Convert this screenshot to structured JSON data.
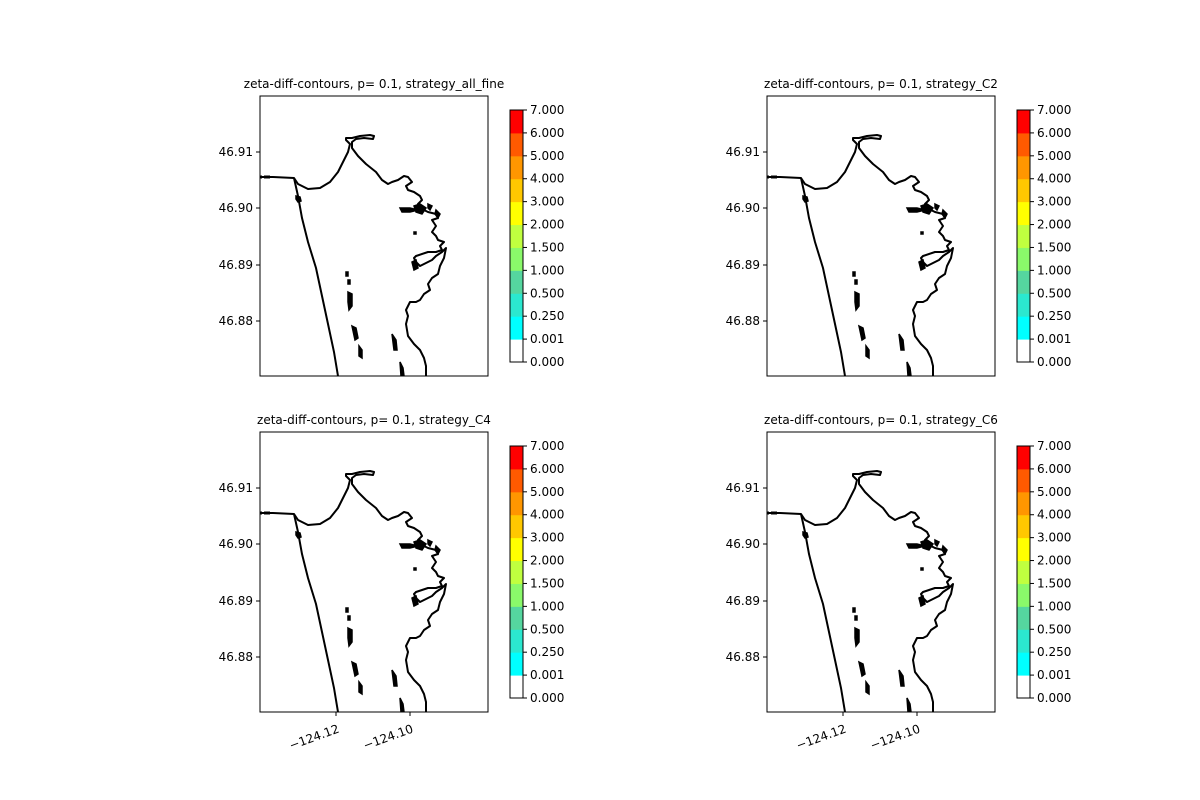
{
  "chart_data": [
    {
      "type": "contour-map",
      "title": "zeta-diff-contours, p= 0.1, strategy_all_fine",
      "y_ticks": [
        "46.91",
        "46.90",
        "46.89",
        "46.88"
      ],
      "x_ticks": [],
      "colorbar": {
        "levels": [
          "0.000",
          "0.001",
          "0.250",
          "0.500",
          "1.000",
          "1.500",
          "2.000",
          "3.000",
          "4.000",
          "5.000",
          "6.000",
          "7.000"
        ],
        "colors": [
          "#ffffff",
          "#00ffff",
          "#2be8cf",
          "#55d69f",
          "#8af96a",
          "#c0ff3f",
          "#ffff00",
          "#ffc800",
          "#ff9600",
          "#ff5a00",
          "#ff0000"
        ]
      }
    },
    {
      "type": "contour-map",
      "title": "zeta-diff-contours, p= 0.1, strategy_C2",
      "y_ticks": [
        "46.91",
        "46.90",
        "46.89",
        "46.88"
      ],
      "x_ticks": [],
      "colorbar": {
        "levels": [
          "0.000",
          "0.001",
          "0.250",
          "0.500",
          "1.000",
          "1.500",
          "2.000",
          "3.000",
          "4.000",
          "5.000",
          "6.000",
          "7.000"
        ],
        "colors": [
          "#ffffff",
          "#00ffff",
          "#2be8cf",
          "#55d69f",
          "#8af96a",
          "#c0ff3f",
          "#ffff00",
          "#ffc800",
          "#ff9600",
          "#ff5a00",
          "#ff0000"
        ]
      }
    },
    {
      "type": "contour-map",
      "title": "zeta-diff-contours, p= 0.1, strategy_C4",
      "y_ticks": [
        "46.91",
        "46.90",
        "46.89",
        "46.88"
      ],
      "x_ticks": [
        "−124.12",
        "−124.10"
      ],
      "colorbar": {
        "levels": [
          "0.000",
          "0.001",
          "0.250",
          "0.500",
          "1.000",
          "1.500",
          "2.000",
          "3.000",
          "4.000",
          "5.000",
          "6.000",
          "7.000"
        ],
        "colors": [
          "#ffffff",
          "#00ffff",
          "#2be8cf",
          "#55d69f",
          "#8af96a",
          "#c0ff3f",
          "#ffff00",
          "#ffc800",
          "#ff9600",
          "#ff5a00",
          "#ff0000"
        ]
      }
    },
    {
      "type": "contour-map",
      "title": "zeta-diff-contours, p= 0.1, strategy_C6",
      "y_ticks": [
        "46.91",
        "46.90",
        "46.89",
        "46.88"
      ],
      "x_ticks": [
        "−124.12",
        "−124.10"
      ],
      "colorbar": {
        "levels": [
          "0.000",
          "0.001",
          "0.250",
          "0.500",
          "1.000",
          "1.500",
          "2.000",
          "3.000",
          "4.000",
          "5.000",
          "6.000",
          "7.000"
        ],
        "colors": [
          "#ffffff",
          "#00ffff",
          "#2be8cf",
          "#55d69f",
          "#8af96a",
          "#c0ff3f",
          "#ffff00",
          "#ffc800",
          "#ff9600",
          "#ff5a00",
          "#ff0000"
        ]
      }
    }
  ]
}
